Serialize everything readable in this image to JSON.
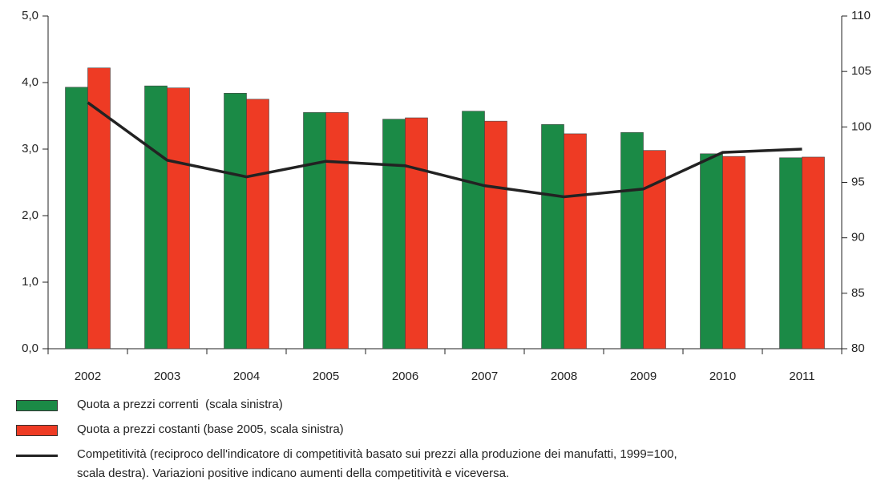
{
  "chart_data": {
    "type": "bar",
    "categories": [
      "2002",
      "2003",
      "2004",
      "2005",
      "2006",
      "2007",
      "2008",
      "2009",
      "2010",
      "2011"
    ],
    "series": [
      {
        "name": "Quota a prezzi correnti  (scala sinistra)",
        "color": "#1b8a46",
        "values": [
          3.93,
          3.95,
          3.84,
          3.55,
          3.45,
          3.57,
          3.37,
          3.25,
          2.93,
          2.87
        ]
      },
      {
        "name": "Quota a prezzi costanti (base 2005, scala sinistra)",
        "color": "#ee3b24",
        "values": [
          4.22,
          3.92,
          3.75,
          3.55,
          3.47,
          3.42,
          3.23,
          2.98,
          2.89,
          2.88
        ]
      },
      {
        "name": "Competitività (reciproco dell'indicatore di competitività basato sui prezzi alla produzione dei manufatti, 1999=100, scala destra). Variazioni positive indicano aumenti della competitività e viceversa.",
        "color": "#222222",
        "type": "line",
        "axis": "y2",
        "values": [
          102.2,
          97.0,
          95.5,
          96.9,
          96.5,
          94.7,
          93.7,
          94.4,
          97.7,
          98.0
        ]
      }
    ],
    "ylim": [
      0,
      5
    ],
    "yticks": [
      {
        "value": 0,
        "label": "0,0"
      },
      {
        "value": 1,
        "label": "1,0"
      },
      {
        "value": 2,
        "label": "2,0"
      },
      {
        "value": 3,
        "label": "3,0"
      },
      {
        "value": 4,
        "label": "4,0"
      },
      {
        "value": 5,
        "label": "5,0"
      }
    ],
    "y2lim": [
      80,
      110
    ],
    "y2ticks": [
      80,
      85,
      90,
      95,
      100,
      105,
      110
    ],
    "grid": false
  }
}
